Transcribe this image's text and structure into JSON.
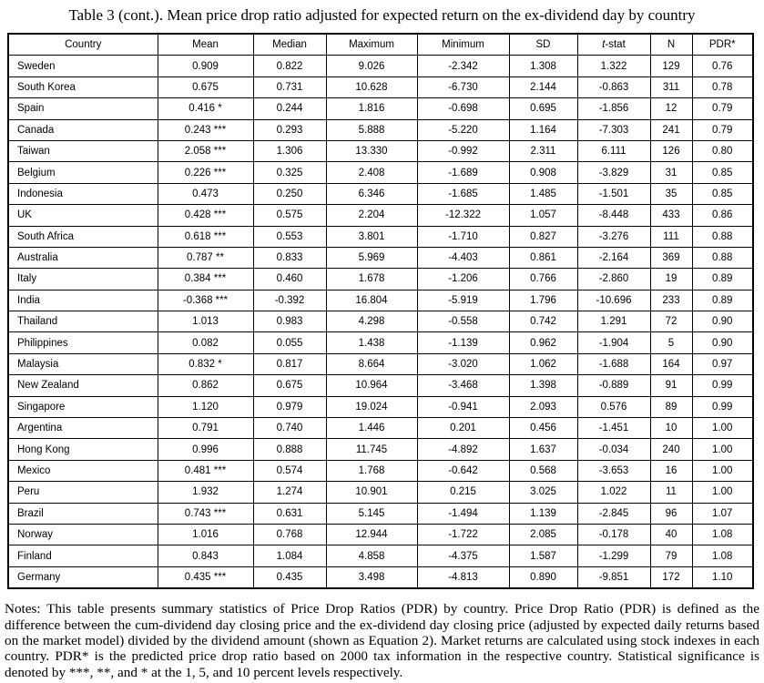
{
  "title": "Table 3 (cont.). Mean price drop ratio adjusted for expected return on the ex-dividend day by country",
  "table": {
    "headers": [
      "Country",
      "Mean",
      "Median",
      "Maximum",
      "Minimum",
      "SD",
      "t-stat",
      "N",
      "PDR*"
    ],
    "tstat_header": {
      "italic": "t",
      "rest": "-stat"
    },
    "rows": [
      [
        "Sweden",
        "0.909",
        "0.822",
        "9.026",
        "-2.342",
        "1.308",
        "1.322",
        "129",
        "0.76"
      ],
      [
        "South Korea",
        "0.675",
        "0.731",
        "10.628",
        "-6.730",
        "2.144",
        "-0.863",
        "311",
        "0.78"
      ],
      [
        "Spain",
        "0.416 *",
        "0.244",
        "1.816",
        "-0.698",
        "0.695",
        "-1.856",
        "12",
        "0.79"
      ],
      [
        "Canada",
        "0.243 ***",
        "0.293",
        "5.888",
        "-5.220",
        "1.164",
        "-7.303",
        "241",
        "0.79"
      ],
      [
        "Taiwan",
        "2.058 ***",
        "1.306",
        "13.330",
        "-0.992",
        "2.311",
        "6.111",
        "126",
        "0.80"
      ],
      [
        "Belgium",
        "0.226 ***",
        "0.325",
        "2.408",
        "-1.689",
        "0.908",
        "-3.829",
        "31",
        "0.85"
      ],
      [
        "Indonesia",
        "0.473",
        "0.250",
        "6.346",
        "-1.685",
        "1.485",
        "-1.501",
        "35",
        "0.85"
      ],
      [
        "UK",
        "0.428 ***",
        "0.575",
        "2.204",
        "-12.322",
        "1.057",
        "-8.448",
        "433",
        "0.86"
      ],
      [
        "South Africa",
        "0.618 ***",
        "0.553",
        "3.801",
        "-1.710",
        "0.827",
        "-3.276",
        "111",
        "0.88"
      ],
      [
        "Australia",
        "0.787 **",
        "0.833",
        "5.969",
        "-4.403",
        "0.861",
        "-2.164",
        "369",
        "0.88"
      ],
      [
        "Italy",
        "0.384 ***",
        "0.460",
        "1.678",
        "-1.206",
        "0.766",
        "-2.860",
        "19",
        "0.89"
      ],
      [
        "India",
        "-0.368 ***",
        "-0.392",
        "16.804",
        "-5.919",
        "1.796",
        "-10.696",
        "233",
        "0.89"
      ],
      [
        "Thailand",
        "1.013",
        "0.983",
        "4.298",
        "-0.558",
        "0.742",
        "1.291",
        "72",
        "0.90"
      ],
      [
        "Philippines",
        "0.082",
        "0.055",
        "1.438",
        "-1.139",
        "0.962",
        "-1.904",
        "5",
        "0.90"
      ],
      [
        "Malaysia",
        "0.832 *",
        "0.817",
        "8.664",
        "-3.020",
        "1.062",
        "-1.688",
        "164",
        "0.97"
      ],
      [
        "New Zealand",
        "0.862",
        "0.675",
        "10.964",
        "-3.468",
        "1.398",
        "-0.889",
        "91",
        "0.99"
      ],
      [
        "Singapore",
        "1.120",
        "0.979",
        "19.024",
        "-0.941",
        "2.093",
        "0.576",
        "89",
        "0.99"
      ],
      [
        "Argentina",
        "0.791",
        "0.740",
        "1.446",
        "0.201",
        "0.456",
        "-1.451",
        "10",
        "1.00"
      ],
      [
        "Hong Kong",
        "0.996",
        "0.888",
        "11.745",
        "-4.892",
        "1.637",
        "-0.034",
        "240",
        "1.00"
      ],
      [
        "Mexico",
        "0.481 ***",
        "0.574",
        "1.768",
        "-0.642",
        "0.568",
        "-3.653",
        "16",
        "1.00"
      ],
      [
        "Peru",
        "1.932",
        "1.274",
        "10.901",
        "0.215",
        "3.025",
        "1.022",
        "11",
        "1.00"
      ],
      [
        "Brazil",
        "0.743 ***",
        "0.631",
        "5.145",
        "-1.494",
        "1.139",
        "-2.845",
        "96",
        "1.07"
      ],
      [
        "Norway",
        "1.016",
        "0.768",
        "12.944",
        "-1.722",
        "2.085",
        "-0.178",
        "40",
        "1.08"
      ],
      [
        "Finland",
        "0.843",
        "1.084",
        "4.858",
        "-4.375",
        "1.587",
        "-1.299",
        "79",
        "1.08"
      ],
      [
        "Germany",
        "0.435 ***",
        "0.435",
        "3.498",
        "-4.813",
        "0.890",
        "-9.851",
        "172",
        "1.10"
      ]
    ]
  },
  "notes": "Notes: This table presents summary statistics of Price Drop Ratios (PDR) by country. Price Drop Ratio (PDR) is defined as the difference between the cum-dividend day closing price and the ex-dividend day closing price (adjusted by expected daily returns based on the market model) divided by the dividend amount (shown as Equation 2). Market returns are calculated using stock indexes in each country. PDR* is the predicted price drop ratio based on 2000 tax information in the respective country. Statistical significance is denoted by ***, **, and * at the 1, 5, and 10 percent levels respectively."
}
